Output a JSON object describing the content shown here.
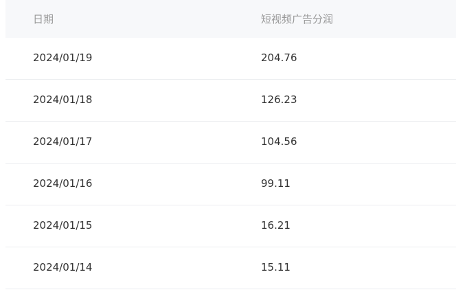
{
  "table": {
    "columns": [
      "日期",
      "短视频广告分润"
    ],
    "rows": [
      [
        "2024/01/19",
        "204.76"
      ],
      [
        "2024/01/18",
        "126.23"
      ],
      [
        "2024/01/17",
        "104.56"
      ],
      [
        "2024/01/16",
        "99.11"
      ],
      [
        "2024/01/15",
        "16.21"
      ],
      [
        "2024/01/14",
        "15.11"
      ]
    ]
  }
}
